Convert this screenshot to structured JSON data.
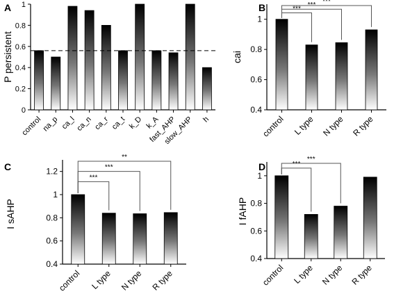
{
  "chart_data": [
    {
      "panel": "A",
      "type": "bar",
      "ylabel": "P persistent",
      "categories": [
        "control",
        "na_p",
        "ca_l",
        "ca_n",
        "ca_r",
        "ca_t",
        "k_D",
        "k_A",
        "fast_AHP",
        "slow_AHP",
        "h"
      ],
      "values": [
        0.56,
        0.5,
        0.98,
        0.94,
        0.8,
        0.56,
        1.0,
        0.56,
        0.54,
        1.0,
        0.4
      ],
      "ylim": [
        0,
        1
      ],
      "yticks": [
        "0",
        "0.2",
        "0.4",
        "0.6",
        "0.8",
        "1"
      ],
      "reference_line": 0.56,
      "significance": []
    },
    {
      "panel": "B",
      "type": "bar",
      "ylabel": "cai",
      "categories": [
        "control",
        "L type",
        "N type",
        "R type"
      ],
      "values": [
        1.0,
        0.83,
        0.845,
        0.93
      ],
      "ylim": [
        0.4,
        1.1
      ],
      "yticks": [
        "0.4",
        "0.6",
        "0.8",
        "1"
      ],
      "significance": [
        {
          "from": 0,
          "to": 1,
          "label": "***"
        },
        {
          "from": 0,
          "to": 2,
          "label": "***"
        },
        {
          "from": 0,
          "to": 3,
          "label": "***"
        }
      ]
    },
    {
      "panel": "C",
      "type": "bar",
      "ylabel": "I sAHP",
      "categories": [
        "control",
        "L type",
        "N type",
        "R type"
      ],
      "values": [
        1.0,
        0.84,
        0.835,
        0.845
      ],
      "ylim": [
        0.4,
        1.3
      ],
      "yticks": [
        "0.4",
        "0.6",
        "0.8",
        "1",
        "1.2"
      ],
      "significance": [
        {
          "from": 0,
          "to": 1,
          "label": "***"
        },
        {
          "from": 0,
          "to": 2,
          "label": "***"
        },
        {
          "from": 0,
          "to": 3,
          "label": "**"
        }
      ]
    },
    {
      "panel": "D",
      "type": "bar",
      "ylabel": "I fAHP",
      "categories": [
        "control",
        "L type",
        "N type",
        "R type"
      ],
      "values": [
        1.0,
        0.72,
        0.78,
        0.99
      ],
      "ylim": [
        0.4,
        1.1
      ],
      "yticks": [
        "0.4",
        "0.6",
        "0.8",
        "1"
      ],
      "significance": [
        {
          "from": 0,
          "to": 1,
          "label": "***"
        },
        {
          "from": 0,
          "to": 2,
          "label": "***"
        }
      ]
    }
  ]
}
